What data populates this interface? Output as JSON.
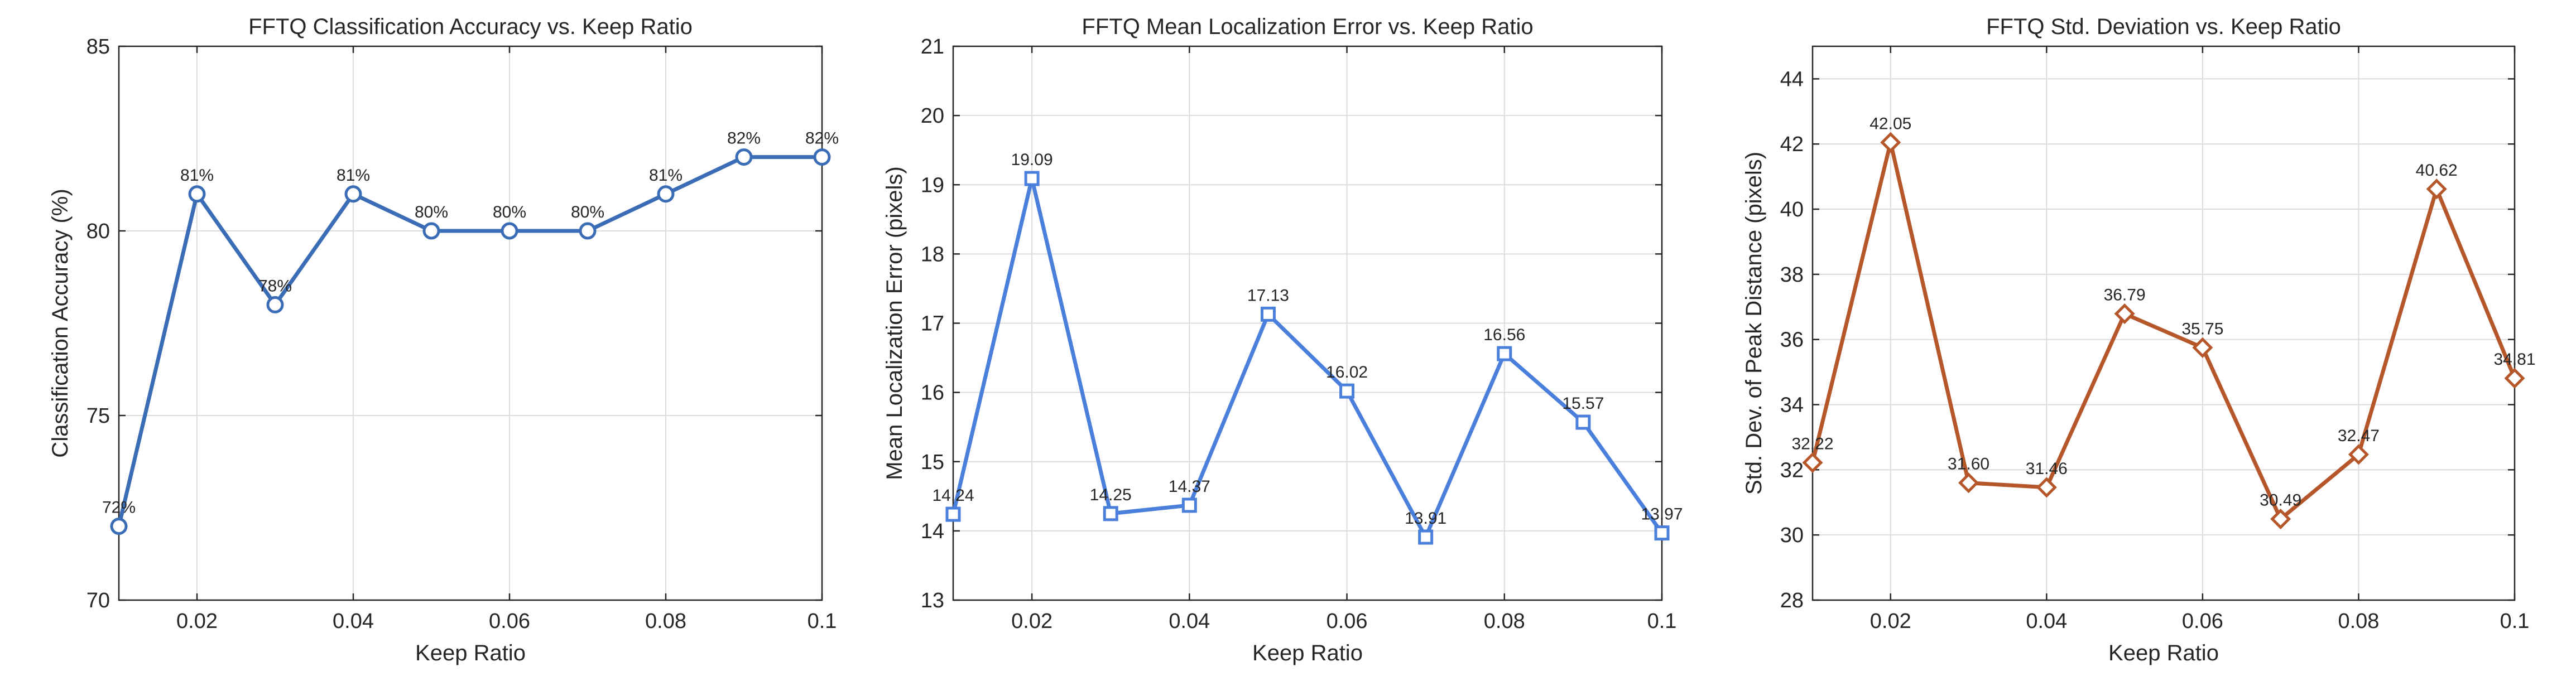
{
  "chart_data": [
    {
      "type": "line",
      "title": "FFTQ Classification Accuracy vs. Keep Ratio",
      "xlabel": "Keep Ratio",
      "ylabel": "Classification Accuracy (%)",
      "xlim": [
        0.01,
        0.1
      ],
      "ylim": [
        70,
        85
      ],
      "xticks": [
        0.02,
        0.04,
        0.06,
        0.08,
        0.1
      ],
      "xtick_labels": [
        "0.02",
        "0.04",
        "0.06",
        "0.08",
        "0.1"
      ],
      "yticks": [
        70,
        75,
        80,
        85
      ],
      "ytick_labels": [
        "70",
        "75",
        "80",
        "85"
      ],
      "grid": true,
      "marker": "circle",
      "color": "#3a6db5",
      "series": [
        {
          "x": [
            0.01,
            0.02,
            0.03,
            0.04,
            0.05,
            0.06,
            0.07,
            0.08,
            0.09,
            0.1
          ],
          "values": [
            72,
            81,
            78,
            81,
            80,
            80,
            80,
            81,
            82,
            82
          ],
          "labels": [
            "72%",
            "81%",
            "78%",
            "81%",
            "80%",
            "80%",
            "80%",
            "81%",
            "82%",
            "82%"
          ]
        }
      ]
    },
    {
      "type": "line",
      "title": "FFTQ Mean Localization Error vs. Keep Ratio",
      "xlabel": "Keep Ratio",
      "ylabel": "Mean Localization Error (pixels)",
      "xlim": [
        0.01,
        0.1
      ],
      "ylim": [
        13,
        21
      ],
      "xticks": [
        0.02,
        0.04,
        0.06,
        0.08,
        0.1
      ],
      "xtick_labels": [
        "0.02",
        "0.04",
        "0.06",
        "0.08",
        "0.1"
      ],
      "yticks": [
        13,
        14,
        15,
        16,
        17,
        18,
        19,
        20,
        21
      ],
      "ytick_labels": [
        "13",
        "14",
        "15",
        "16",
        "17",
        "18",
        "19",
        "20",
        "21"
      ],
      "grid": true,
      "marker": "square",
      "color": "#4a7fdc",
      "series": [
        {
          "x": [
            0.01,
            0.02,
            0.03,
            0.04,
            0.05,
            0.06,
            0.07,
            0.08,
            0.09,
            0.1
          ],
          "values": [
            14.24,
            19.09,
            14.25,
            14.37,
            17.13,
            16.02,
            13.91,
            16.56,
            15.57,
            13.97
          ],
          "labels": [
            "14.24",
            "19.09",
            "14.25",
            "14.37",
            "17.13",
            "16.02",
            "13.91",
            "16.56",
            "15.57",
            "13.97"
          ]
        }
      ]
    },
    {
      "type": "line",
      "title": "FFTQ Std. Deviation vs. Keep Ratio",
      "xlabel": "Keep Ratio",
      "ylabel": "Std. Dev. of Peak Distance (pixels)",
      "xlim": [
        0.01,
        0.1
      ],
      "ylim": [
        28,
        45
      ],
      "xticks": [
        0.02,
        0.04,
        0.06,
        0.08,
        0.1
      ],
      "xtick_labels": [
        "0.02",
        "0.04",
        "0.06",
        "0.08",
        "0.1"
      ],
      "yticks": [
        28,
        30,
        32,
        34,
        36,
        38,
        40,
        42,
        44
      ],
      "ytick_labels": [
        "28",
        "30",
        "32",
        "34",
        "36",
        "38",
        "40",
        "42",
        "44"
      ],
      "grid": true,
      "marker": "diamond",
      "color": "#b5572a",
      "series": [
        {
          "x": [
            0.01,
            0.02,
            0.03,
            0.04,
            0.05,
            0.06,
            0.07,
            0.08,
            0.09,
            0.1
          ],
          "values": [
            32.22,
            42.05,
            31.6,
            31.46,
            36.79,
            35.75,
            30.49,
            32.47,
            40.62,
            34.81
          ],
          "labels": [
            "32.22",
            "42.05",
            "31.60",
            "31.46",
            "36.79",
            "35.75",
            "30.49",
            "32.47",
            "40.62",
            "34.81"
          ]
        }
      ]
    }
  ]
}
